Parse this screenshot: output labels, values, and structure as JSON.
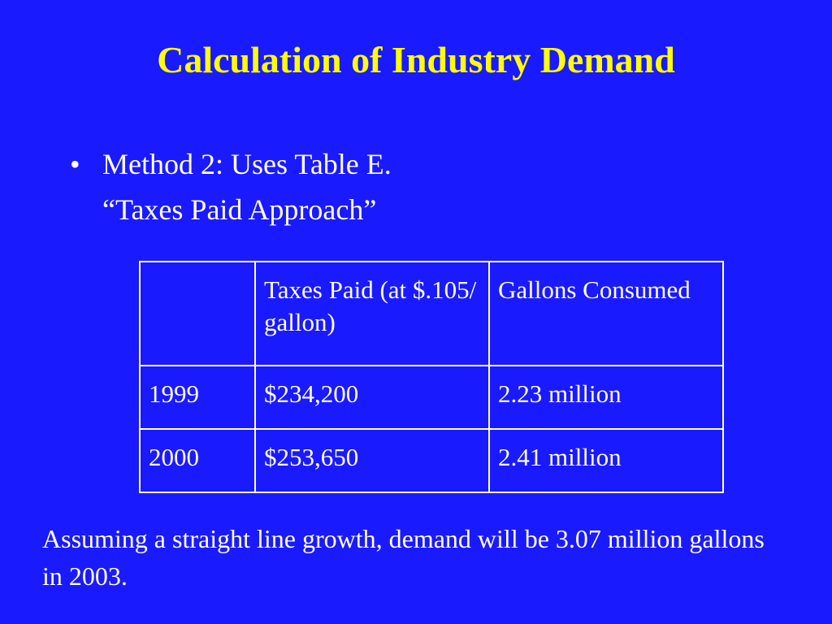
{
  "slide": {
    "title": "Calculation of Industry Demand",
    "bullet_symbol": "•",
    "bullet_text": "Method 2:  Uses Table E.",
    "sub_text": "“Taxes Paid Approach”",
    "table": {
      "header": [
        "",
        "Taxes Paid (at $.105/ gallon)",
        "Gallons Consumed"
      ],
      "rows": [
        [
          "1999",
          "$234,200",
          "2.23 million"
        ],
        [
          "2000",
          "$253,650",
          "2.41 million"
        ]
      ]
    },
    "conclusion": "Assuming a straight line growth, demand will be 3.07 million gallons in 2003."
  },
  "colors": {
    "background": "#1a1aff",
    "title": "#ffff00",
    "text": "#ffffff"
  }
}
